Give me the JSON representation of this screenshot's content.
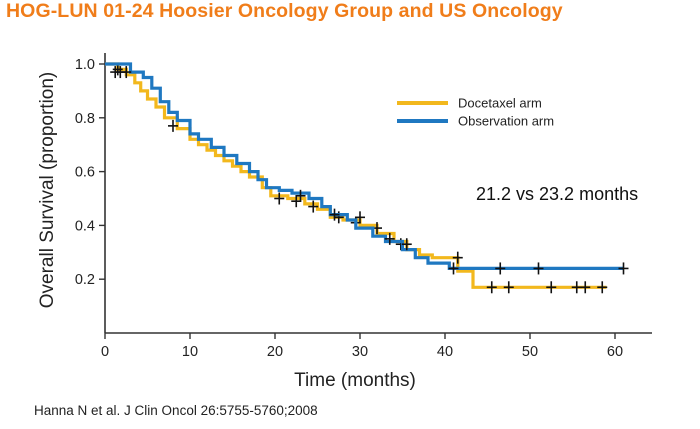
{
  "header": {
    "title": "HOG-LUN 01-24 Hoosier Oncology Group and US Oncology",
    "citation": "Hanna N et al. J Clin Oncol 26:5755-5760;2008"
  },
  "chart_data": {
    "type": "line",
    "subtype": "kaplan-meier",
    "xlabel": "Time (months)",
    "ylabel": "Overall Survival  (proportion)",
    "xlim": [
      0,
      64
    ],
    "ylim": [
      0,
      1.05
    ],
    "x_ticks": [
      0,
      10,
      20,
      30,
      40,
      50,
      60
    ],
    "y_ticks": [
      0.2,
      0.4,
      0.6,
      0.8,
      1.0
    ],
    "x_tick_labels": [
      "0",
      "10",
      "20",
      "30",
      "40",
      "50",
      "60"
    ],
    "y_tick_labels": [
      "0.2",
      "0.4",
      "0.6",
      "0.8",
      "1.0"
    ],
    "grid": false,
    "legend_position": "top-right",
    "annotation": "21.2 vs 23.2 months",
    "series": [
      {
        "name": "Docetaxel arm",
        "color": "#f2b81d",
        "steps": [
          [
            0,
            1.0
          ],
          [
            1.5,
            0.98
          ],
          [
            2.5,
            0.96
          ],
          [
            3.5,
            0.93
          ],
          [
            4.2,
            0.9
          ],
          [
            5,
            0.87
          ],
          [
            6,
            0.84
          ],
          [
            7,
            0.8
          ],
          [
            8.5,
            0.76
          ],
          [
            10,
            0.72
          ],
          [
            11,
            0.7
          ],
          [
            12,
            0.68
          ],
          [
            13,
            0.66
          ],
          [
            14,
            0.64
          ],
          [
            15,
            0.62
          ],
          [
            16,
            0.6
          ],
          [
            17,
            0.58
          ],
          [
            18.5,
            0.54
          ],
          [
            19.5,
            0.51
          ],
          [
            21.5,
            0.5
          ],
          [
            23.5,
            0.48
          ],
          [
            25,
            0.46
          ],
          [
            26.5,
            0.43
          ],
          [
            28,
            0.42
          ],
          [
            30,
            0.4
          ],
          [
            32,
            0.37
          ],
          [
            34,
            0.34
          ],
          [
            35.5,
            0.31
          ],
          [
            37,
            0.29
          ],
          [
            38.5,
            0.28
          ],
          [
            41.5,
            0.23
          ],
          [
            43.3,
            0.17
          ],
          [
            59,
            0.17
          ]
        ],
        "censored": [
          [
            1.5,
            0.98
          ],
          [
            8,
            0.77
          ],
          [
            20.5,
            0.5
          ],
          [
            22.5,
            0.49
          ],
          [
            24.5,
            0.47
          ],
          [
            27.5,
            0.43
          ],
          [
            29.5,
            0.41
          ],
          [
            32,
            0.39
          ],
          [
            34.8,
            0.33
          ],
          [
            41.5,
            0.28
          ],
          [
            45.5,
            0.17
          ],
          [
            47.5,
            0.17
          ],
          [
            52.5,
            0.17
          ],
          [
            55.5,
            0.17
          ],
          [
            56.5,
            0.17
          ],
          [
            58.5,
            0.17
          ]
        ]
      },
      {
        "name": "Observation arm",
        "color": "#1f78c1",
        "steps": [
          [
            0,
            1.0
          ],
          [
            3,
            0.97
          ],
          [
            4.5,
            0.95
          ],
          [
            5.5,
            0.91
          ],
          [
            6.5,
            0.86
          ],
          [
            7.5,
            0.82
          ],
          [
            8.5,
            0.79
          ],
          [
            10,
            0.74
          ],
          [
            11,
            0.72
          ],
          [
            12.5,
            0.69
          ],
          [
            14,
            0.66
          ],
          [
            15.5,
            0.63
          ],
          [
            17,
            0.6
          ],
          [
            18,
            0.57
          ],
          [
            19,
            0.54
          ],
          [
            20.5,
            0.53
          ],
          [
            22,
            0.52
          ],
          [
            24,
            0.5
          ],
          [
            25.5,
            0.47
          ],
          [
            26.5,
            0.44
          ],
          [
            28.5,
            0.42
          ],
          [
            29.5,
            0.39
          ],
          [
            31.5,
            0.36
          ],
          [
            33,
            0.34
          ],
          [
            35,
            0.31
          ],
          [
            36.5,
            0.28
          ],
          [
            38,
            0.26
          ],
          [
            40.5,
            0.24
          ],
          [
            61,
            0.24
          ]
        ],
        "censored": [
          [
            1.2,
            0.97
          ],
          [
            1.8,
            0.97
          ],
          [
            2.5,
            0.97
          ],
          [
            23,
            0.51
          ],
          [
            27,
            0.44
          ],
          [
            30,
            0.43
          ],
          [
            33.5,
            0.35
          ],
          [
            35.5,
            0.33
          ],
          [
            41,
            0.24
          ],
          [
            46.5,
            0.24
          ],
          [
            51,
            0.24
          ],
          [
            61,
            0.24
          ]
        ]
      }
    ]
  }
}
